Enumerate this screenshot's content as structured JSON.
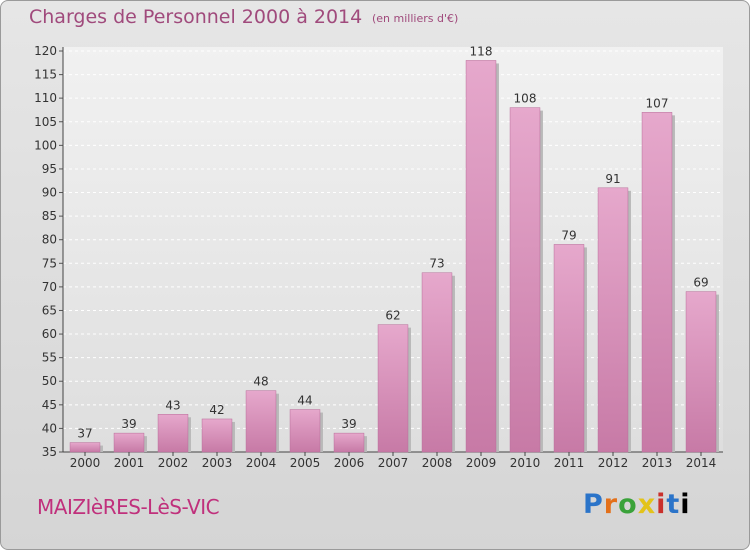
{
  "header": {
    "title": "Charges de Personnel 2000 à 2014",
    "subtitle": "(en milliers d'€)"
  },
  "footer": {
    "commune": "MAIZIèRES-LèS-VIC",
    "logo": "Proxiti"
  },
  "colors": {
    "bar_fill": "#c77aa6",
    "bar_light": "#e6a8cc",
    "title": "#a04a7c",
    "commune": "#c0307c"
  },
  "chart_data": {
    "type": "bar",
    "title": "Charges de Personnel 2000 à 2014",
    "subtitle": "(en milliers d'€)",
    "categories": [
      "2000",
      "2001",
      "2002",
      "2003",
      "2004",
      "2005",
      "2006",
      "2007",
      "2008",
      "2009",
      "2010",
      "2011",
      "2012",
      "2013",
      "2014"
    ],
    "values": [
      37,
      39,
      43,
      42,
      48,
      44,
      39,
      62,
      73,
      118,
      108,
      79,
      91,
      107,
      69
    ],
    "ylim": [
      35,
      120
    ],
    "yticks": [
      35,
      40,
      45,
      50,
      55,
      60,
      65,
      70,
      75,
      80,
      85,
      90,
      95,
      100,
      105,
      110,
      115,
      120
    ],
    "grid": true,
    "legend": "none"
  }
}
